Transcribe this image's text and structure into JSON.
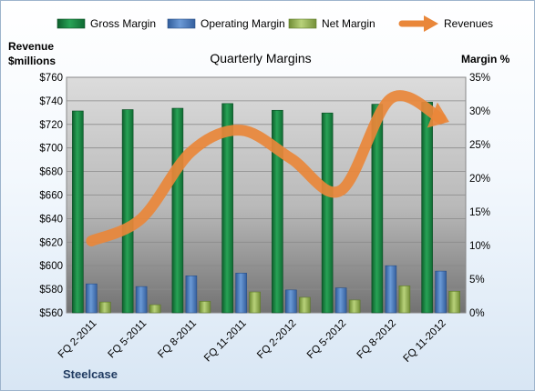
{
  "chart_data": {
    "type": "bar",
    "title": "Quarterly Margins",
    "company_label": "Steelcase",
    "categories": [
      "FQ 2-2011",
      "FQ 5-2011",
      "FQ 8-2011",
      "FQ 11-2011",
      "FQ 2-2012",
      "FQ 5-2012",
      "FQ 8-2012",
      "FQ 11-2012"
    ],
    "left_axis": {
      "label_line1": "Revenue",
      "label_line2": "$millions",
      "min": 560,
      "max": 760,
      "step": 20,
      "tick_labels": [
        "$560",
        "$580",
        "$600",
        "$620",
        "$640",
        "$660",
        "$680",
        "$700",
        "$720",
        "$740",
        "$760"
      ]
    },
    "right_axis": {
      "label": "Margin %",
      "min": 0,
      "max": 35,
      "step": 5,
      "tick_labels": [
        "0%",
        "5%",
        "10%",
        "15%",
        "20%",
        "25%",
        "30%",
        "35%"
      ]
    },
    "series": [
      {
        "name": "Gross Margin",
        "axis": "right",
        "kind": "bar",
        "color": "#1f8f4a",
        "values": [
          30.0,
          30.2,
          30.4,
          31.1,
          30.1,
          29.7,
          31.0,
          31.3
        ]
      },
      {
        "name": "Operating Margin",
        "axis": "right",
        "kind": "bar",
        "color": "#4a7cc0",
        "values": [
          4.3,
          3.9,
          5.5,
          5.9,
          3.4,
          3.7,
          7.0,
          6.2
        ]
      },
      {
        "name": "Net Margin",
        "axis": "right",
        "kind": "bar",
        "color": "#9bbb59",
        "values": [
          1.6,
          1.2,
          1.7,
          3.1,
          2.3,
          1.9,
          4.0,
          3.2
        ]
      },
      {
        "name": "Revenues",
        "axis": "left",
        "kind": "line",
        "color": "#e9873a",
        "values": [
          621,
          640,
          697,
          715,
          691,
          664,
          742,
          725
        ]
      }
    ],
    "grid": true,
    "legend_position": "top"
  }
}
